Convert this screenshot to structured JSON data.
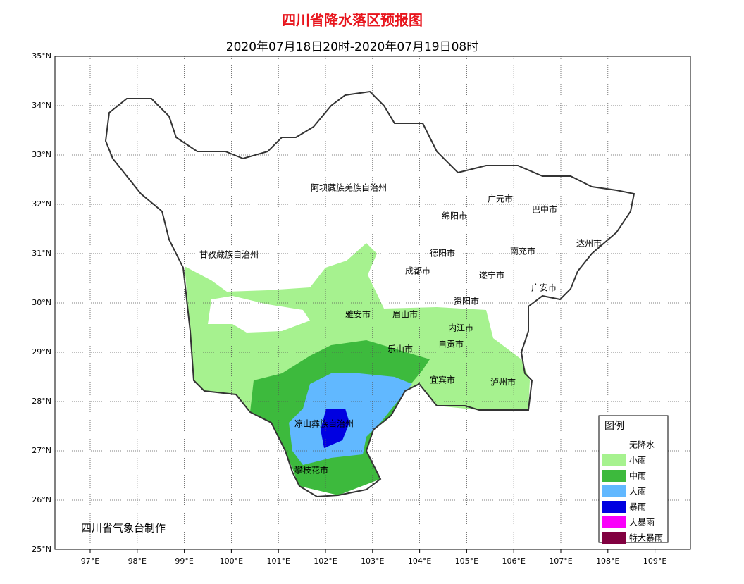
{
  "header": {
    "title": "四川省降水落区预报图",
    "subtitle": "2020年07月18日20时-2020年07月19日08时"
  },
  "axes": {
    "lat_labels": [
      "35°N",
      "34°N",
      "33°N",
      "32°N",
      "31°N",
      "30°N",
      "29°N",
      "28°N",
      "27°N",
      "26°N",
      "25°N"
    ],
    "lon_labels": [
      "97°E",
      "98°E",
      "99°E",
      "100°E",
      "101°E",
      "102°E",
      "103°E",
      "104°E",
      "105°E",
      "106°E",
      "107°E",
      "108°E",
      "109°E"
    ]
  },
  "places": [
    {
      "label": "阿坝藏族羌族自治州"
    },
    {
      "label": "甘孜藏族自治州"
    },
    {
      "label": "广元市"
    },
    {
      "label": "巴中市"
    },
    {
      "label": "绵阳市"
    },
    {
      "label": "达州市"
    },
    {
      "label": "德阳市"
    },
    {
      "label": "南充市"
    },
    {
      "label": "成都市"
    },
    {
      "label": "遂宁市"
    },
    {
      "label": "广安市"
    },
    {
      "label": "资阳市"
    },
    {
      "label": "雅安市"
    },
    {
      "label": "眉山市"
    },
    {
      "label": "内江市"
    },
    {
      "label": "乐山市"
    },
    {
      "label": "自贡市"
    },
    {
      "label": "宜宾市"
    },
    {
      "label": "泸州市"
    },
    {
      "label": "凉山彝族自治州"
    },
    {
      "label": "攀枝花市"
    }
  ],
  "legend": {
    "title": "图例",
    "items": [
      {
        "label": "无降水",
        "color": "#ffffff"
      },
      {
        "label": "小雨",
        "color": "#a6f28f"
      },
      {
        "label": "中雨",
        "color": "#3dba3d"
      },
      {
        "label": "大雨",
        "color": "#61b8ff"
      },
      {
        "label": "暴雨",
        "color": "#0000e1"
      },
      {
        "label": "大暴雨",
        "color": "#fa00fa"
      },
      {
        "label": "特大暴雨",
        "color": "#810040"
      }
    ]
  },
  "credit": "四川省气象台制作"
}
